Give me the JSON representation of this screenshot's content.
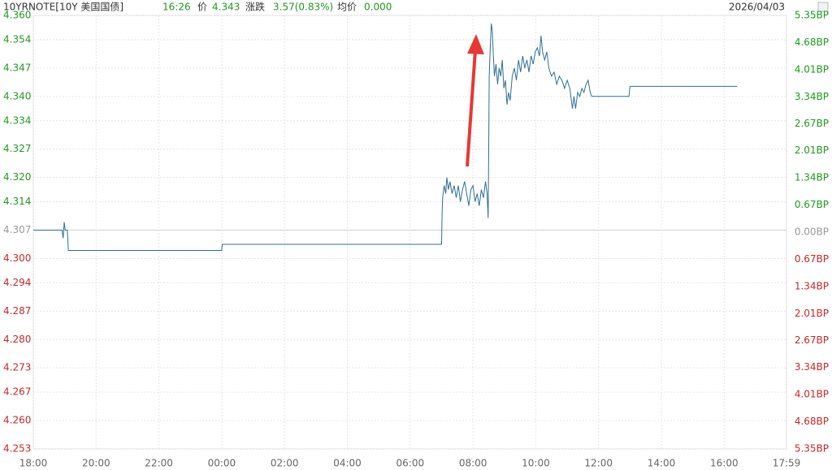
{
  "chart_data": {
    "type": "line",
    "header": {
      "symbol": "10YRNOTE[10Y 美国国债]",
      "time": "16:26",
      "price_label": "价",
      "price": "4.343",
      "change_label": "涨跌",
      "change": "3.57(0.83%)",
      "avg_label": "均价",
      "avg": "0.000",
      "date": "2026/04/03"
    },
    "x": [
      "18:00",
      "18:55",
      "18:57",
      "18:59",
      "19:01",
      "19:05",
      "19:07",
      "00:00",
      "00:01",
      "07:00",
      "07:01",
      "07:02",
      "07:05",
      "07:08",
      "07:10",
      "07:13",
      "07:16",
      "07:20",
      "07:24",
      "07:28",
      "07:32",
      "07:36",
      "07:40",
      "07:44",
      "07:48",
      "07:52",
      "07:56",
      "08:00",
      "08:04",
      "08:08",
      "08:12",
      "08:16",
      "08:20",
      "08:24",
      "08:27",
      "08:29",
      "08:30",
      "08:31",
      "08:33",
      "08:35",
      "08:37",
      "08:39",
      "08:41",
      "08:44",
      "08:47",
      "08:50",
      "08:53",
      "08:56",
      "08:59",
      "09:02",
      "09:05",
      "09:08",
      "09:11",
      "09:15",
      "09:19",
      "09:23",
      "09:27",
      "09:31",
      "09:35",
      "09:39",
      "09:43",
      "09:47",
      "09:51",
      "09:55",
      "09:59",
      "10:03",
      "10:07",
      "10:10",
      "10:13",
      "10:17",
      "10:21",
      "10:25",
      "10:30",
      "10:35",
      "10:40",
      "10:45",
      "10:50",
      "10:55",
      "11:00",
      "11:05",
      "11:10",
      "11:13",
      "11:16",
      "11:20",
      "11:24",
      "11:28",
      "11:32",
      "11:36",
      "11:40",
      "11:44",
      "11:47",
      "12:58",
      "13:00",
      "16:25"
    ],
    "series": [
      {
        "color": "#2f6e96",
        "values": [
          4.307,
          4.307,
          4.305,
          4.309,
          4.307,
          4.307,
          4.302,
          4.302,
          4.3035,
          4.3035,
          4.311,
          4.315,
          4.318,
          4.316,
          4.32,
          4.317,
          4.319,
          4.316,
          4.318,
          4.315,
          4.318,
          4.314,
          4.317,
          4.319,
          4.316,
          4.313,
          4.317,
          4.318,
          4.314,
          4.316,
          4.313,
          4.317,
          4.315,
          4.319,
          4.316,
          4.31,
          4.326,
          4.345,
          4.352,
          4.358,
          4.356,
          4.35,
          4.345,
          4.348,
          4.343,
          4.347,
          4.345,
          4.349,
          4.342,
          4.344,
          4.338,
          4.341,
          4.339,
          4.345,
          4.347,
          4.344,
          4.349,
          4.346,
          4.35,
          4.347,
          4.349,
          4.346,
          4.35,
          4.348,
          4.351,
          4.352,
          4.35,
          4.355,
          4.351,
          4.349,
          4.351,
          4.347,
          4.345,
          4.346,
          4.343,
          4.345,
          4.344,
          4.342,
          4.344,
          4.342,
          4.337,
          4.34,
          4.337,
          4.341,
          4.34,
          4.342,
          4.341,
          4.343,
          4.344,
          4.341,
          4.34,
          4.34,
          4.3425,
          4.3425
        ]
      }
    ],
    "xticks": [
      "18:00",
      "20:00",
      "22:00",
      "00:00",
      "02:00",
      "04:00",
      "06:00",
      "08:00",
      "10:00",
      "12:00",
      "14:00",
      "16:00",
      "17:59"
    ],
    "ylim": [
      4.253,
      4.36
    ],
    "yticks": [
      {
        "value": 4.36,
        "label": "4.360"
      },
      4.354,
      4.347,
      {
        "value": 4.34,
        "label": "4.340"
      },
      4.334,
      4.327,
      {
        "value": 4.32,
        "label": "4.320"
      },
      4.314,
      4.307,
      {
        "value": 4.3,
        "label": "4.300"
      },
      4.294,
      4.287,
      {
        "value": 4.28,
        "label": "4.280"
      },
      4.273,
      4.267,
      {
        "value": 4.26,
        "label": "4.260"
      },
      4.253
    ],
    "y2lim": [
      -5.35,
      5.35
    ],
    "y2ticks": [
      {
        "value": 5.35,
        "label": "5.35BP"
      },
      {
        "value": 4.68,
        "label": "4.68BP"
      },
      {
        "value": 4.01,
        "label": "4.01BP"
      },
      {
        "value": 3.34,
        "label": "3.34BP"
      },
      {
        "value": 2.67,
        "label": "2.67BP"
      },
      {
        "value": 2.01,
        "label": "2.01BP"
      },
      {
        "value": 1.34,
        "label": "1.34BP"
      },
      {
        "value": 0.67,
        "label": "0.67BP"
      },
      {
        "value": 0,
        "label": "0.00BP"
      },
      {
        "value": -0.67,
        "label": "0.67BP"
      },
      {
        "value": -1.34,
        "label": "1.34BP"
      },
      {
        "value": -2.01,
        "label": "2.01BP"
      },
      {
        "value": -2.67,
        "label": "2.67BP"
      },
      {
        "value": -3.34,
        "label": "3.34BP"
      },
      {
        "value": -4.01,
        "label": "4.01BP"
      },
      {
        "value": -4.68,
        "label": "4.68BP"
      },
      {
        "value": -5.35,
        "label": "5.35BP"
      }
    ],
    "grid": true,
    "up_color": "#1f9a1f",
    "down_color": "#c62828",
    "flat_color": "#999999"
  }
}
